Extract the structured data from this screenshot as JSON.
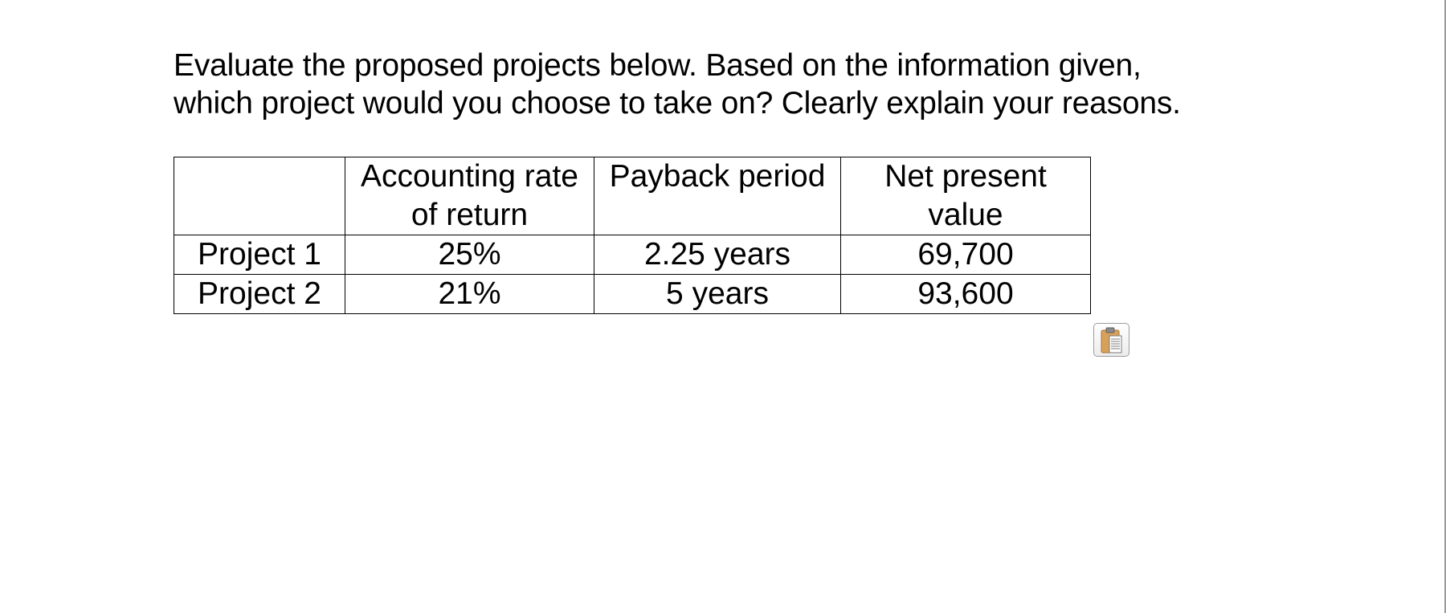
{
  "question": {
    "line1": "Evaluate the proposed projects below. Based on the information given,",
    "line2": "which project would you choose to take on? Clearly explain your reasons."
  },
  "table": {
    "headers": [
      "",
      "Accounting rate of return",
      "Payback period",
      "Net present value"
    ],
    "header_lines": {
      "arr": [
        "Accounting rate",
        "of return"
      ],
      "payback": [
        "Payback period"
      ],
      "npv": [
        "Net present",
        "value"
      ]
    },
    "rows": [
      [
        "Project 1",
        "25%",
        "2.25 years",
        "69,700"
      ],
      [
        "Project 2",
        "21%",
        "5 years",
        "93,600"
      ]
    ]
  },
  "paste_button": {
    "icon": "clipboard-icon"
  },
  "colors": {
    "background": "#ffffff",
    "text": "#000000",
    "table_border": "#000000",
    "clipboard_board": "#d8a15a",
    "clipboard_clip": "#8a8a8a"
  }
}
